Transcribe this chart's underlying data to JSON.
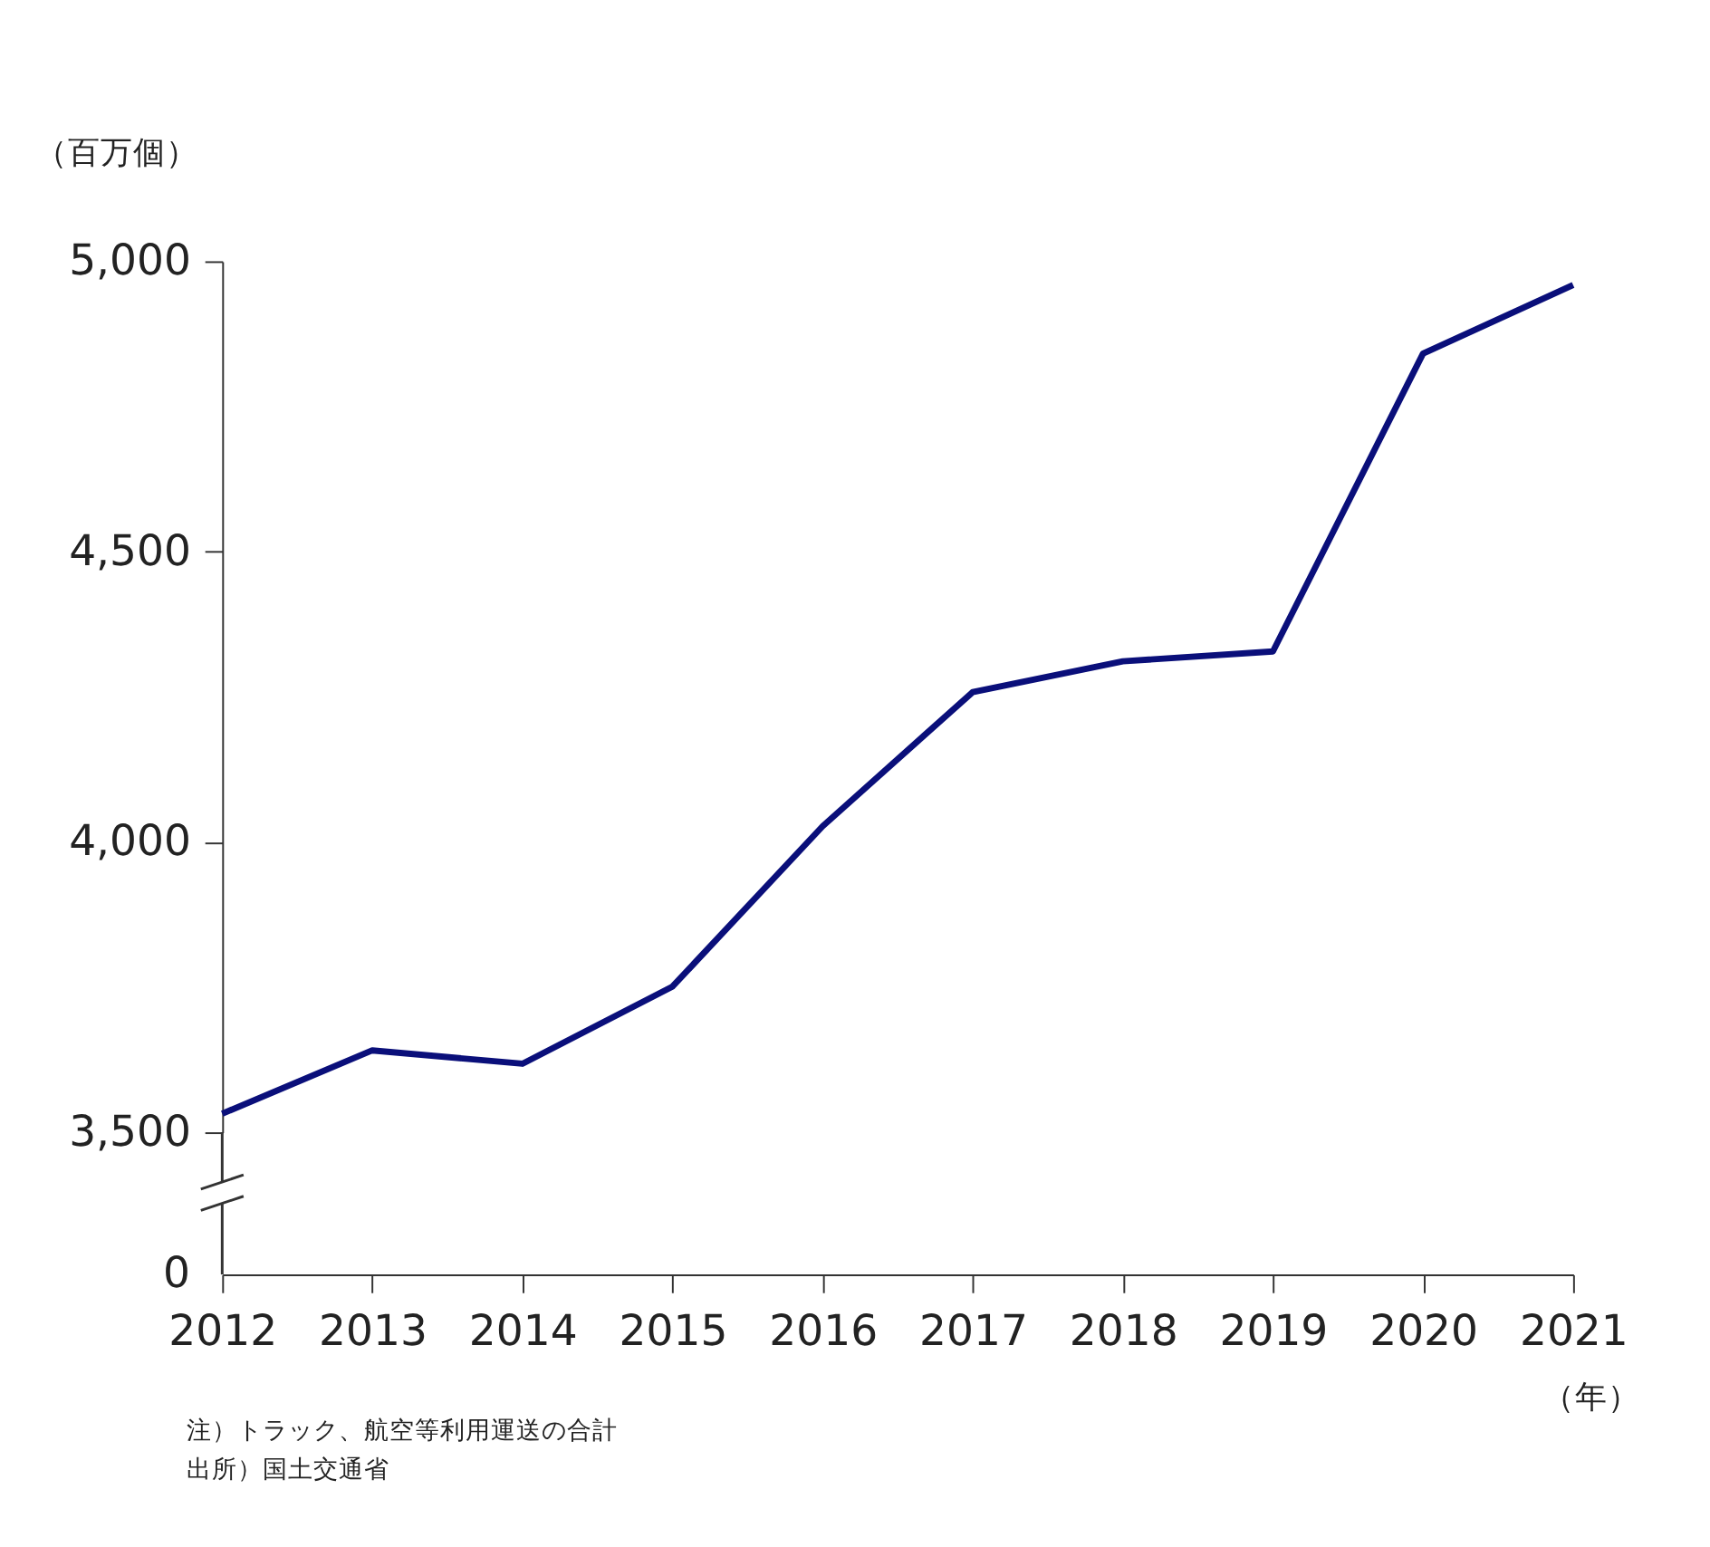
{
  "chart_data": {
    "type": "line",
    "ylabel": "（百万個）",
    "xlabel": "（年）",
    "categories": [
      "2012",
      "2013",
      "2014",
      "2015",
      "2016",
      "2017",
      "2018",
      "2019",
      "2020",
      "2021"
    ],
    "series": [
      {
        "color": "#0a0f7a",
        "values": [
          3532,
          3641,
          3618,
          3751,
          4027,
          4258,
          4311,
          4328,
          4841,
          4959
        ]
      }
    ],
    "ylim": [
      3500,
      5000
    ],
    "yticks": [
      {
        "value": 3500,
        "label": "3,500"
      },
      {
        "value": 4000,
        "label": "4,000"
      },
      {
        "value": 4500,
        "label": "4,500"
      },
      {
        "value": 5000,
        "label": "5,000"
      }
    ],
    "grid": false,
    "legend": false,
    "marker": "none",
    "line_style": "solid",
    "annotations": [
      "0",
      "注）トラック、航空等利用運送の合計",
      "出所）国土交通省"
    ]
  }
}
